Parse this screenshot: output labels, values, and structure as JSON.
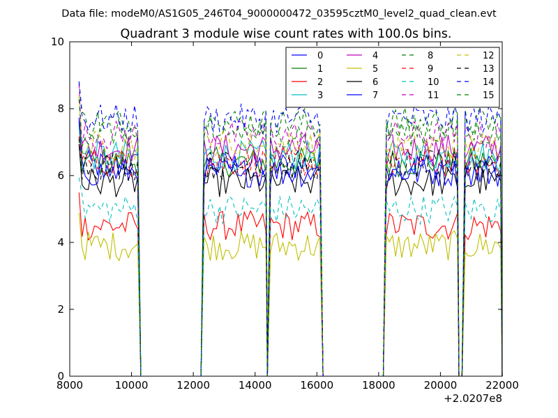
{
  "header": {
    "file_line": "Data file: modeM0/AS1G05_246T04_9000000472_03595cztM0_level2_quad_clean.evt"
  },
  "chart_data": {
    "type": "line",
    "title": "Quadrant 3 module wise count rates with 100.0s bins.",
    "xlabel": "",
    "ylabel": "",
    "xlim": [
      8000,
      22000
    ],
    "ylim": [
      0,
      10
    ],
    "x_offset_label": "+2.0207e8",
    "x_ticks": [
      8000,
      10000,
      12000,
      14000,
      16000,
      18000,
      20000,
      22000
    ],
    "x_tick_labels": [
      "8000",
      "10000",
      "12000",
      "14000",
      "16000",
      "18000",
      "20000",
      "22000"
    ],
    "y_ticks": [
      0,
      2,
      4,
      6,
      8,
      10
    ],
    "y_tick_labels": [
      "0",
      "2",
      "4",
      "6",
      "8",
      "10"
    ],
    "grid": false,
    "legend_position": "top-right",
    "legend_columns": 4,
    "segments": [
      {
        "start": 8300,
        "end": 10200,
        "after_end": 10300
      },
      {
        "before_start": 12250,
        "start": 12350,
        "end": 14350,
        "after_end": 14400
      },
      {
        "before_start": 14400,
        "start": 14500,
        "end": 16100,
        "after_end": 16200
      },
      {
        "before_start": 18150,
        "start": 18250,
        "end": 20550,
        "after_end": 20600
      },
      {
        "before_start": 20700,
        "start": 20800,
        "end": 21950,
        "after_end": 22000
      }
    ],
    "series": [
      {
        "name": "0",
        "color": "#0000ff",
        "dash": "solid",
        "level": 6.3
      },
      {
        "name": "1",
        "color": "#008000",
        "dash": "solid",
        "level": 6.4
      },
      {
        "name": "2",
        "color": "#ff0000",
        "dash": "solid",
        "level": 4.5
      },
      {
        "name": "3",
        "color": "#00bfbf",
        "dash": "solid",
        "level": 6.6
      },
      {
        "name": "4",
        "color": "#bf00bf",
        "dash": "solid",
        "level": 6.8
      },
      {
        "name": "5",
        "color": "#bfbf00",
        "dash": "solid",
        "level": 3.9
      },
      {
        "name": "6",
        "color": "#000000",
        "dash": "solid",
        "level": 5.8
      },
      {
        "name": "7",
        "color": "#0000ff",
        "dash": "solid",
        "level": 6.1
      },
      {
        "name": "8",
        "color": "#008000",
        "dash": "dashed",
        "level": 7.6
      },
      {
        "name": "9",
        "color": "#ff0000",
        "dash": "dashed",
        "level": 6.4
      },
      {
        "name": "10",
        "color": "#00bfbf",
        "dash": "dashed",
        "level": 5.0
      },
      {
        "name": "11",
        "color": "#bf00bf",
        "dash": "dashed",
        "level": 7.2
      },
      {
        "name": "12",
        "color": "#bfbf00",
        "dash": "dashed",
        "level": 6.9
      },
      {
        "name": "13",
        "color": "#000000",
        "dash": "dashed",
        "level": 6.3
      },
      {
        "name": "14",
        "color": "#0000ff",
        "dash": "dashed",
        "level": 7.7
      },
      {
        "name": "15",
        "color": "#008000",
        "dash": "dashed",
        "level": 7.3
      }
    ]
  }
}
